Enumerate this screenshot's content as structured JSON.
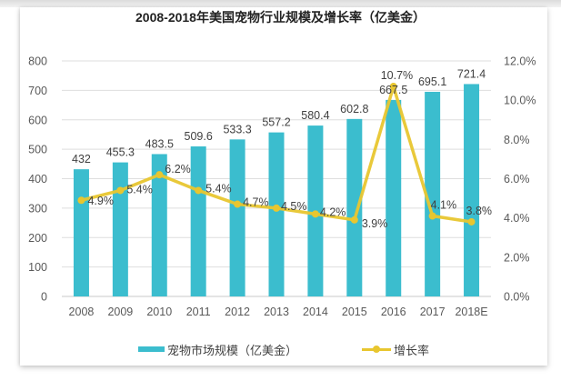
{
  "chart_data": {
    "type": "bar",
    "title": "2008-2018年美国宠物行业规模及增长率（亿美金）",
    "categories": [
      "2008",
      "2009",
      "2010",
      "2011",
      "2012",
      "2013",
      "2014",
      "2015",
      "2016",
      "2017",
      "2018E"
    ],
    "series": [
      {
        "name": "宠物市场规模（亿美金）",
        "type": "bar",
        "axis": "left",
        "color": "#3BBDCE",
        "values": [
          432,
          455.3,
          483.5,
          509.6,
          533.3,
          557.2,
          580.4,
          602.8,
          667.5,
          695.1,
          721.4
        ],
        "labels": [
          "432",
          "455.3",
          "483.5",
          "509.6",
          "533.3",
          "557.2",
          "580.4",
          "602.8",
          "667.5",
          "695.1",
          "721.4"
        ]
      },
      {
        "name": "增长率",
        "type": "line",
        "axis": "right",
        "color": "#E8C62F",
        "values": [
          4.9,
          5.4,
          6.2,
          5.4,
          4.7,
          4.5,
          4.2,
          3.9,
          10.7,
          4.1,
          3.8
        ],
        "labels": [
          "4.9%",
          "5.4%",
          "6.2%",
          "5.4%",
          "4.7%",
          "4.5%",
          "4.2%",
          "3.9%",
          "10.7%",
          "4.1%",
          "3.8%"
        ]
      }
    ],
    "left_axis": {
      "ylim": [
        0,
        800
      ],
      "ticks": [
        0,
        100,
        200,
        300,
        400,
        500,
        600,
        700,
        800
      ],
      "tick_labels": [
        "0",
        "100",
        "200",
        "300",
        "400",
        "500",
        "600",
        "700",
        "800"
      ]
    },
    "right_axis": {
      "ylim": [
        0,
        12
      ],
      "ticks": [
        0,
        2,
        4,
        6,
        8,
        10,
        12
      ],
      "tick_labels": [
        "0.0%",
        "2.0%",
        "4.0%",
        "6.0%",
        "8.0%",
        "10.0%",
        "12.0%"
      ]
    },
    "grid": true,
    "legend_position": "bottom",
    "xlabel": "",
    "ylabel": ""
  },
  "legend": {
    "bar_label": "宠物市场规模（亿美金）",
    "line_label": "增长率"
  }
}
